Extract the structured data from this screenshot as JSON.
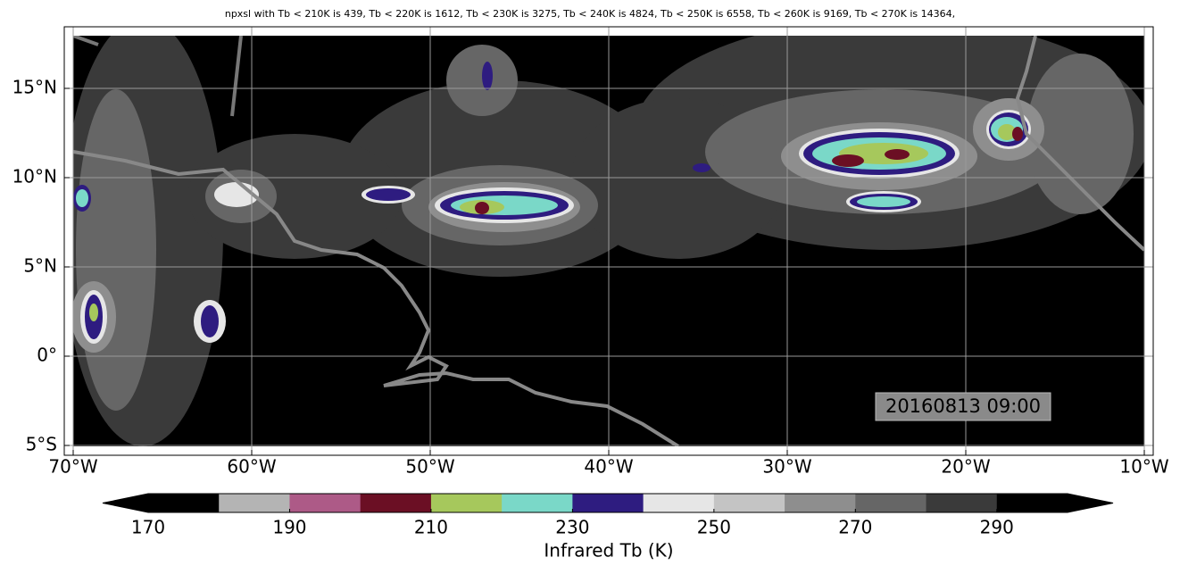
{
  "chart_data": {
    "type": "map",
    "title": "npxsl with Tb < 210K is 439,  Tb < 220K is 1612,  Tb < 230K is 3275,  Tb < 240K is 4824,  Tb < 250K is 6558,  Tb < 260K is 9169,  Tb < 270K is 14364,",
    "xlim": [
      -70.5,
      -9.5
    ],
    "ylim": [
      -5.55,
      18.45
    ],
    "xticks": [
      {
        "value": -70,
        "label": "70°W"
      },
      {
        "value": -60,
        "label": "60°W"
      },
      {
        "value": -50,
        "label": "50°W"
      },
      {
        "value": -40,
        "label": "40°W"
      },
      {
        "value": -30,
        "label": "30°W"
      },
      {
        "value": -20,
        "label": "20°W"
      },
      {
        "value": -10,
        "label": "10°W"
      }
    ],
    "yticks": [
      {
        "value": 15,
        "label": "15°N"
      },
      {
        "value": 10,
        "label": "10°N"
      },
      {
        "value": 5,
        "label": "5°N"
      },
      {
        "value": 0,
        "label": "0°"
      },
      {
        "value": -5,
        "label": "5°S"
      }
    ],
    "grid": true,
    "annotation": "20160813 09:00",
    "colorbar": {
      "label": "Infrared Tb (K)",
      "bins": [
        170,
        180,
        190,
        200,
        210,
        220,
        230,
        240,
        250,
        260,
        270,
        280,
        290,
        300
      ],
      "colors": [
        "#000000",
        "#b4b4b4",
        "#ad5a87",
        "#6b0f24",
        "#a6c85c",
        "#7ad8c8",
        "#2e1c80",
        "#e6e6e6",
        "#c4c4c4",
        "#8e8e8e",
        "#666666",
        "#3a3a3a",
        "#000000"
      ],
      "under": "#000000",
      "over": "#000000",
      "ticks": [
        170,
        190,
        210,
        230,
        250,
        270,
        290
      ]
    }
  }
}
